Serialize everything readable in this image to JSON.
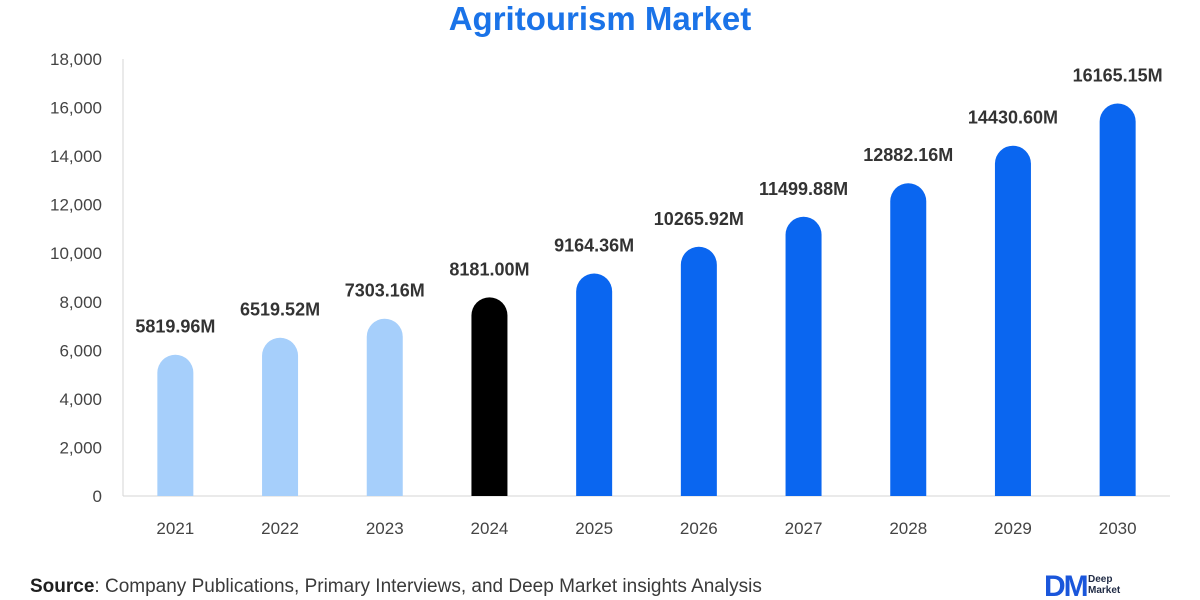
{
  "chart_data": {
    "type": "bar",
    "title": "Agritourism Market",
    "xlabel": "",
    "ylabel": "",
    "categories": [
      "2021",
      "2022",
      "2023",
      "2024",
      "2025",
      "2026",
      "2027",
      "2028",
      "2029",
      "2030"
    ],
    "values": [
      5819.96,
      6519.52,
      7303.16,
      8181.0,
      9164.36,
      10265.92,
      11499.88,
      12882.16,
      14430.6,
      16165.15
    ],
    "data_labels": [
      "5819.96M",
      "6519.52M",
      "7303.16M",
      "8181.00M",
      "9164.36M",
      "10265.92M",
      "11499.88M",
      "12882.16M",
      "14430.60M",
      "16165.15M"
    ],
    "ylim": [
      0,
      18000
    ],
    "yticks": [
      0,
      2000,
      4000,
      6000,
      8000,
      10000,
      12000,
      14000,
      16000,
      18000
    ],
    "ytick_labels": [
      "0",
      "2,000",
      "4,000",
      "6,000",
      "8,000",
      "10,000",
      "12,000",
      "14,000",
      "16,000",
      "18,000"
    ],
    "bar_colors": [
      "#a6cffb",
      "#a6cffb",
      "#a6cffb",
      "#000000",
      "#0a66f0",
      "#0a66f0",
      "#0a66f0",
      "#0a66f0",
      "#0a66f0",
      "#0a66f0"
    ],
    "grid": false,
    "legend": "none"
  },
  "footer": {
    "source_key": "Source",
    "source_text": ": Company Publications, Primary Interviews, and Deep Market insights Analysis"
  },
  "logo": {
    "mark": "DM",
    "line1": "Deep",
    "line2": "Market"
  },
  "colors": {
    "title": "#1a73e8",
    "axis": "#d6d6d6"
  }
}
